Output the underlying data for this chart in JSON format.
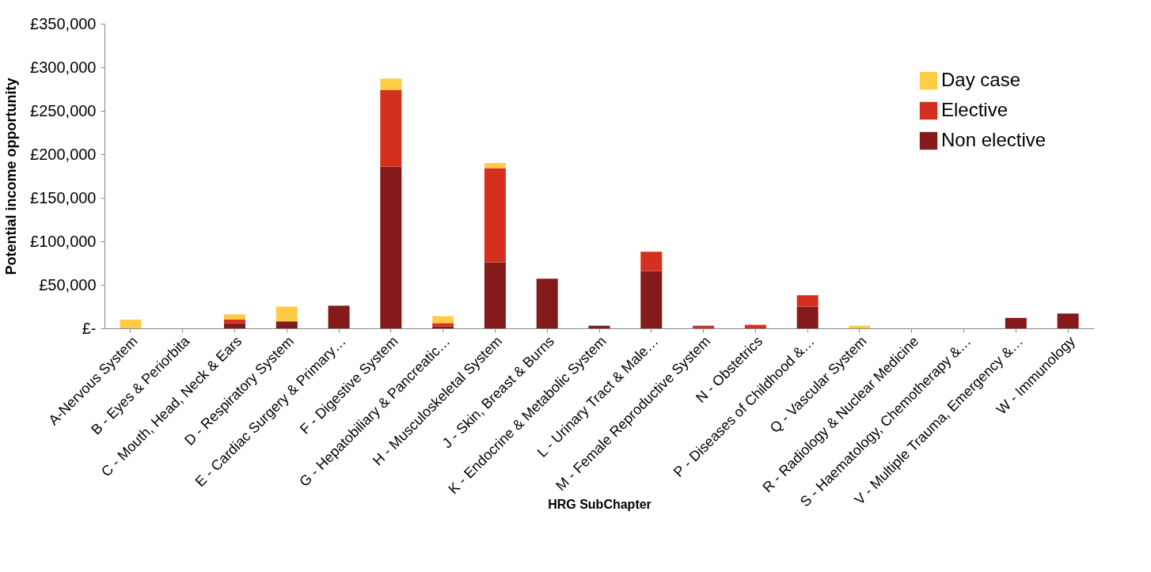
{
  "chart_data": {
    "type": "bar",
    "stacked": true,
    "xlabel": "HRG SubChapter",
    "ylabel": "Potential income opportunity",
    "categories": [
      "A-Nervous System",
      "B - Eyes & Periorbita",
      "C - Mouth, Head, Neck & Ears",
      "D - Respiratory System",
      "E - Cardiac Surgery & Primary…",
      "F - Digestive System",
      "G - Hepatobiliary & Pancreatic…",
      "H - Musculoskeletal System",
      "J - Skin, Breast & Burns",
      "K - Endocrine & Metabolic System",
      "L - Urinary Tract & Male…",
      "M - Female Reproductive System",
      "N - Obstetrics",
      "P - Diseases of Childhood &…",
      "Q - Vascular System",
      "R - Radiology & Nuclear Medicine",
      "S - Haematology, Chemotherapy &…",
      "V - Multiple Trauma, Emergency &…",
      "W - Immunology"
    ],
    "series": [
      {
        "name": "Non elective",
        "color": "#841a1a",
        "values": [
          0,
          0,
          6000,
          8000,
          26000,
          186000,
          2000,
          76000,
          57000,
          3000,
          66000,
          0,
          0,
          25000,
          0,
          0,
          0,
          12000,
          17000
        ]
      },
      {
        "name": "Elective",
        "color": "#d5301e",
        "values": [
          0,
          0,
          4000,
          0,
          0,
          88000,
          4000,
          108000,
          0,
          0,
          22000,
          3000,
          4000,
          13000,
          0,
          0,
          0,
          0,
          0
        ]
      },
      {
        "name": "Day case",
        "color": "#ffcc44",
        "values": [
          10000,
          0,
          6000,
          17000,
          0,
          13000,
          8000,
          6000,
          0,
          0,
          0,
          0,
          0,
          0,
          3000,
          0,
          0,
          0,
          0
        ]
      }
    ],
    "ylim": [
      0,
      350000
    ],
    "yticks": [
      {
        "value": 0,
        "label": "£-"
      },
      {
        "value": 50000,
        "label": "£50,000"
      },
      {
        "value": 100000,
        "label": "£100,000"
      },
      {
        "value": 150000,
        "label": "£150,000"
      },
      {
        "value": 200000,
        "label": "£200,000"
      },
      {
        "value": 250000,
        "label": "£250,000"
      },
      {
        "value": 300000,
        "label": "£300,000"
      },
      {
        "value": 350000,
        "label": "£350,000"
      }
    ],
    "grid": false,
    "legend": "top right"
  }
}
